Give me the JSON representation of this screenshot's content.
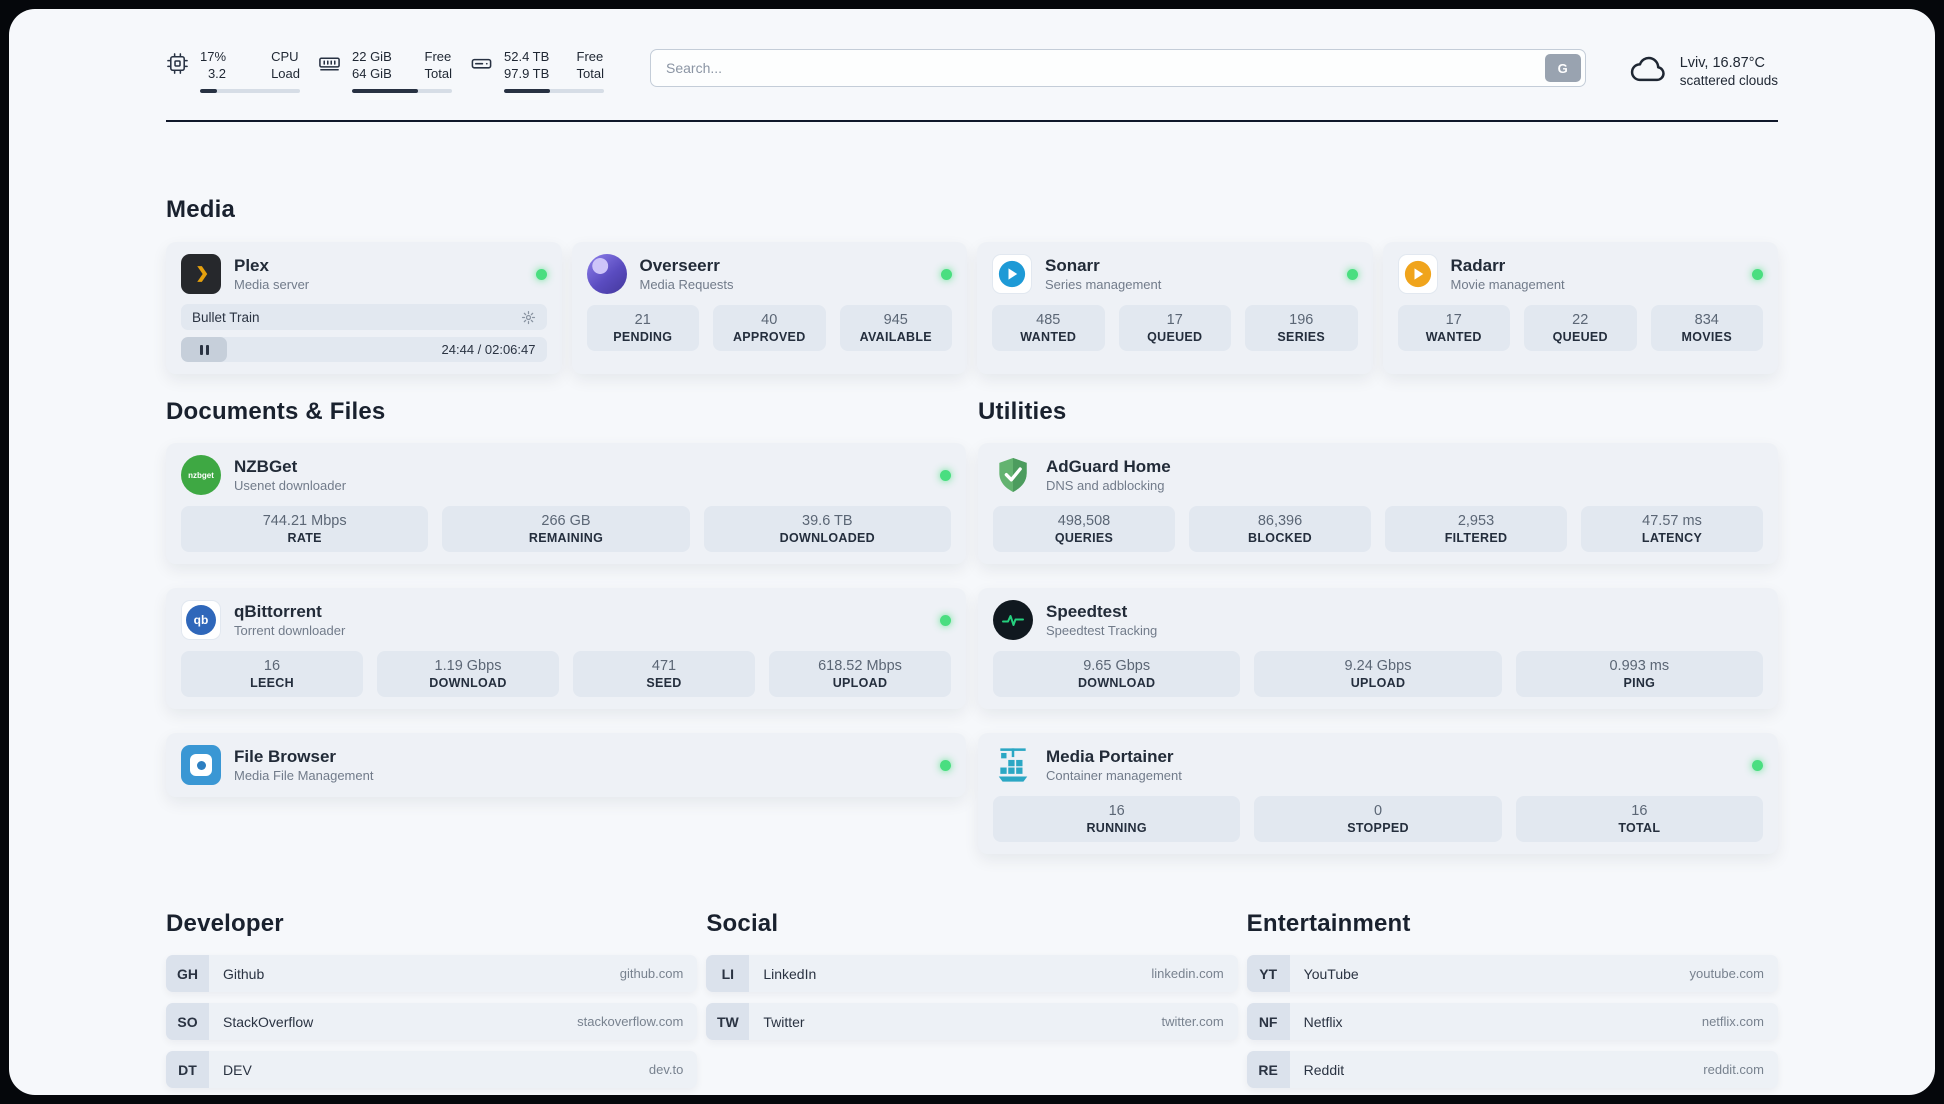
{
  "topbar": {
    "cpu": {
      "v1": "17%",
      "v2": "3.2",
      "l1": "CPU",
      "l2": "Load",
      "bar": 17
    },
    "ram": {
      "v1": "22 GiB",
      "v2": "64 GiB",
      "l1": "Free",
      "l2": "Total",
      "bar": 66
    },
    "disk": {
      "v1": "52.4 TB",
      "v2": "97.9 TB",
      "l1": "Free",
      "l2": "Total",
      "bar": 46
    },
    "search": {
      "placeholder": "Search...",
      "button_label": "G"
    },
    "weather": {
      "location": "Lviv, 16.87°C",
      "condition": "scattered clouds"
    }
  },
  "media": {
    "title": "Media",
    "plex": {
      "name": "Plex",
      "subtitle": "Media server",
      "now_playing": "Bullet Train",
      "time": "24:44 / 02:06:47"
    },
    "overseerr": {
      "name": "Overseerr",
      "subtitle": "Media Requests",
      "stats": [
        {
          "v": "21",
          "l": "PENDING"
        },
        {
          "v": "40",
          "l": "APPROVED"
        },
        {
          "v": "945",
          "l": "AVAILABLE"
        }
      ]
    },
    "sonarr": {
      "name": "Sonarr",
      "subtitle": "Series management",
      "stats": [
        {
          "v": "485",
          "l": "WANTED"
        },
        {
          "v": "17",
          "l": "QUEUED"
        },
        {
          "v": "196",
          "l": "SERIES"
        }
      ]
    },
    "radarr": {
      "name": "Radarr",
      "subtitle": "Movie management",
      "stats": [
        {
          "v": "17",
          "l": "WANTED"
        },
        {
          "v": "22",
          "l": "QUEUED"
        },
        {
          "v": "834",
          "l": "MOVIES"
        }
      ]
    }
  },
  "documents": {
    "title": "Documents & Files",
    "nzbget": {
      "name": "NZBGet",
      "subtitle": "Usenet downloader",
      "icon_text": "nzbget",
      "stats": [
        {
          "v": "744.21 Mbps",
          "l": "RATE"
        },
        {
          "v": "266 GB",
          "l": "REMAINING"
        },
        {
          "v": "39.6 TB",
          "l": "DOWNLOADED"
        }
      ]
    },
    "qbittorrent": {
      "name": "qBittorrent",
      "subtitle": "Torrent downloader",
      "icon_text": "qb",
      "stats": [
        {
          "v": "16",
          "l": "LEECH"
        },
        {
          "v": "1.19 Gbps",
          "l": "DOWNLOAD"
        },
        {
          "v": "471",
          "l": "SEED"
        },
        {
          "v": "618.52 Mbps",
          "l": "UPLOAD"
        }
      ]
    },
    "filebrowser": {
      "name": "File Browser",
      "subtitle": "Media File Management"
    }
  },
  "utilities": {
    "title": "Utilities",
    "adguard": {
      "name": "AdGuard Home",
      "subtitle": "DNS and adblocking",
      "stats": [
        {
          "v": "498,508",
          "l": "QUERIES"
        },
        {
          "v": "86,396",
          "l": "BLOCKED"
        },
        {
          "v": "2,953",
          "l": "FILTERED"
        },
        {
          "v": "47.57 ms",
          "l": "LATENCY"
        }
      ]
    },
    "speedtest": {
      "name": "Speedtest",
      "subtitle": "Speedtest Tracking",
      "stats": [
        {
          "v": "9.65 Gbps",
          "l": "DOWNLOAD"
        },
        {
          "v": "9.24 Gbps",
          "l": "UPLOAD"
        },
        {
          "v": "0.993 ms",
          "l": "PING"
        }
      ]
    },
    "portainer": {
      "name": "Media Portainer",
      "subtitle": "Container management",
      "stats": [
        {
          "v": "16",
          "l": "RUNNING"
        },
        {
          "v": "0",
          "l": "STOPPED"
        },
        {
          "v": "16",
          "l": "TOTAL"
        }
      ]
    }
  },
  "bookmarks": {
    "developer": {
      "title": "Developer",
      "items": [
        {
          "abbr": "GH",
          "name": "Github",
          "url": "github.com"
        },
        {
          "abbr": "SO",
          "name": "StackOverflow",
          "url": "stackoverflow.com"
        },
        {
          "abbr": "DT",
          "name": "DEV",
          "url": "dev.to"
        }
      ]
    },
    "social": {
      "title": "Social",
      "items": [
        {
          "abbr": "LI",
          "name": "LinkedIn",
          "url": "linkedin.com"
        },
        {
          "abbr": "TW",
          "name": "Twitter",
          "url": "twitter.com"
        }
      ]
    },
    "entertainment": {
      "title": "Entertainment",
      "items": [
        {
          "abbr": "YT",
          "name": "YouTube",
          "url": "youtube.com"
        },
        {
          "abbr": "NF",
          "name": "Netflix",
          "url": "netflix.com"
        },
        {
          "abbr": "RE",
          "name": "Reddit",
          "url": "reddit.com"
        }
      ]
    }
  }
}
